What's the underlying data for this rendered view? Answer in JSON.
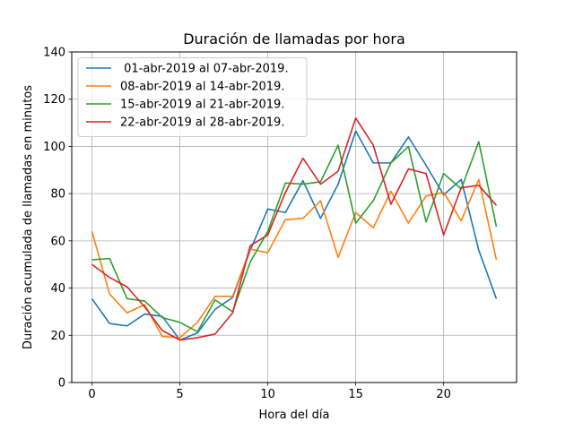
{
  "chart_data": {
    "type": "line",
    "title": "Duración de llamadas por hora",
    "xlabel": "Hora del día",
    "ylabel": "Duración acumulada de llamadas en minutos",
    "xlim": [
      -1.15,
      24.15
    ],
    "ylim": [
      0,
      140
    ],
    "xticks": [
      0,
      5,
      10,
      15,
      20
    ],
    "yticks": [
      0,
      20,
      40,
      60,
      80,
      100,
      120,
      140
    ],
    "grid": true,
    "legend_position": "top-left",
    "x": [
      0,
      1,
      2,
      3,
      4,
      5,
      6,
      7,
      8,
      9,
      10,
      11,
      12,
      13,
      14,
      15,
      16,
      17,
      18,
      19,
      20,
      21,
      22,
      23
    ],
    "series": [
      {
        "name": " 01-abr-2019 al 07-abr-2019.",
        "color": "#1f77b4",
        "values": [
          35.5,
          25,
          24,
          29,
          28,
          18,
          21,
          31,
          36,
          56,
          73.5,
          72,
          85.5,
          69.5,
          84,
          106.5,
          93,
          93,
          104,
          92,
          79.5,
          86,
          56,
          35.5
        ]
      },
      {
        "name": "08-abr-2019 al 14-abr-2019.",
        "color": "#ff7f0e",
        "values": [
          64,
          37.5,
          29.5,
          33,
          19.5,
          19,
          25.5,
          36.5,
          36.5,
          56.5,
          55,
          69,
          69.5,
          77,
          53,
          72,
          65.5,
          81,
          67.5,
          79,
          80.5,
          68.5,
          86,
          52
        ]
      },
      {
        "name": "15-abr-2019 al 21-abr-2019.",
        "color": "#2ca02c",
        "values": [
          52,
          52.5,
          35.5,
          34.5,
          27.5,
          25.5,
          21.5,
          35,
          30,
          51,
          64,
          84.5,
          84,
          85,
          100.5,
          67.5,
          77,
          93,
          100,
          68,
          88.5,
          82,
          102,
          66
        ]
      },
      {
        "name": "22-abr-2019 al 28-abr-2019.",
        "color": "#d62728",
        "values": [
          50,
          44.5,
          40.5,
          32,
          22,
          18,
          19,
          20.5,
          29.5,
          58,
          62.5,
          80.5,
          95,
          84,
          89.5,
          112,
          100.5,
          75.5,
          90.5,
          88.5,
          62.5,
          82.5,
          83.5,
          75
        ]
      }
    ]
  }
}
